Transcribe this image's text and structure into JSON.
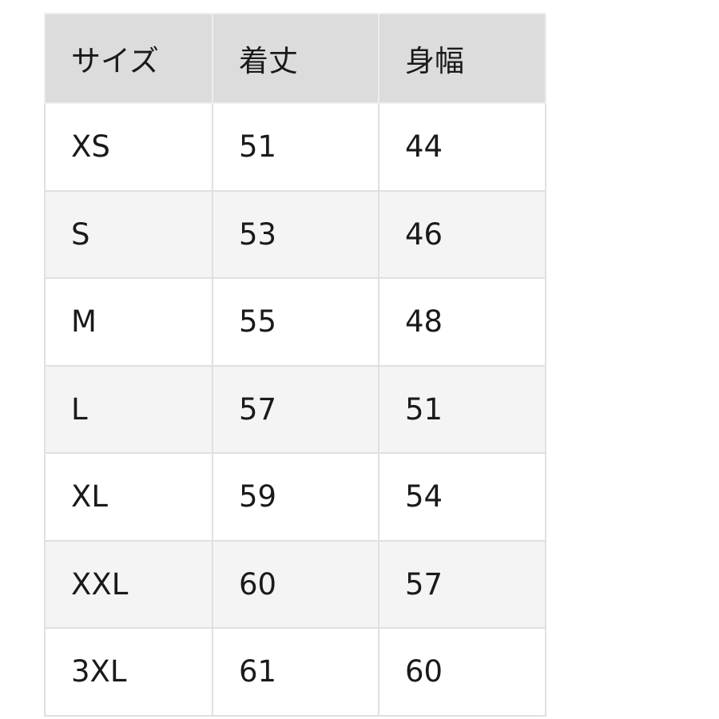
{
  "table": {
    "headers": [
      "サイズ",
      "着丈",
      "身幅"
    ],
    "rows": [
      [
        "XS",
        "51",
        "44"
      ],
      [
        "S",
        "53",
        "46"
      ],
      [
        "M",
        "55",
        "48"
      ],
      [
        "L",
        "57",
        "51"
      ],
      [
        "XL",
        "59",
        "54"
      ],
      [
        "XXL",
        "60",
        "57"
      ],
      [
        "3XL",
        "61",
        "60"
      ]
    ]
  }
}
